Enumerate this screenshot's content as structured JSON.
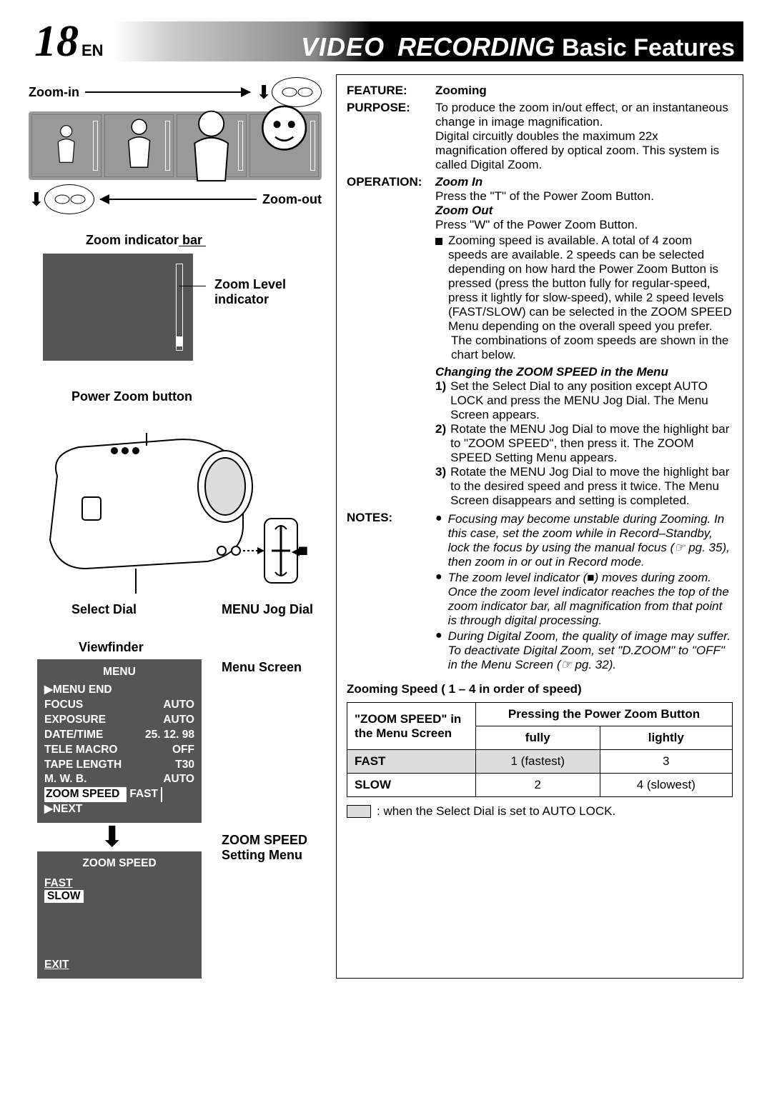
{
  "header": {
    "page_number": "18",
    "lang": "EN",
    "title_video": "VIDEO",
    "title_recording": "RECORDING",
    "title_basic": "Basic Features"
  },
  "left": {
    "zoom_in": "Zoom-in",
    "zoom_out": "Zoom-out",
    "zoom_indicator_bar": "Zoom indicator bar",
    "zoom_level_indicator": "Zoom Level indicator",
    "power_zoom_button": "Power Zoom button",
    "select_dial": "Select Dial",
    "menu_jog_dial": "MENU Jog Dial",
    "viewfinder": "Viewfinder",
    "menu_screen": "Menu Screen",
    "zoom_speed_setting_menu": "ZOOM SPEED Setting Menu",
    "menu": {
      "title": "MENU",
      "items": [
        [
          "▶MENU END",
          ""
        ],
        [
          "FOCUS",
          "AUTO"
        ],
        [
          "EXPOSURE",
          "AUTO"
        ],
        [
          "DATE/TIME",
          "25. 12. 98"
        ],
        [
          "TELE MACRO",
          "OFF"
        ],
        [
          "TAPE LENGTH",
          "T30"
        ],
        [
          "M. W. B.",
          "AUTO"
        ]
      ],
      "highlighted": [
        "ZOOM SPEED",
        "FAST"
      ],
      "next": "▶NEXT"
    },
    "zoom_speed_menu": {
      "title": "ZOOM SPEED",
      "fast": "FAST",
      "slow": "SLOW",
      "exit": "EXIT"
    }
  },
  "right": {
    "feature_key": "FEATURE:",
    "feature_val": "Zooming",
    "purpose_key": "PURPOSE:",
    "purpose_val": "To produce the zoom in/out effect, or an instantaneous change in image magnification.",
    "purpose_val2": "Digital circuitly doubles the maximum 22x magnification offered by optical zoom. This system is called Digital Zoom.",
    "operation_key": "OPERATION:",
    "zoom_in_head": "Zoom In",
    "zoom_in_text": "Press the \"T\" of the Power Zoom Button.",
    "zoom_out_head": "Zoom Out",
    "zoom_out_text": "Press \"W\" of the Power Zoom Button.",
    "bullet1": "Zooming speed is available. A total of 4 zoom speeds are available. 2 speeds can be selected depending on how hard the Power Zoom Button is pressed (press the button fully for regular-speed, press it lightly for slow-speed), while 2 speed levels (FAST/SLOW) can be selected in the ZOOM SPEED Menu depending on the overall speed you prefer.",
    "bullet1b": "The combinations of zoom speeds are shown in the chart below.",
    "changing_head": "Changing the ZOOM SPEED in the Menu",
    "step1": "Set the Select Dial to any position except AUTO LOCK and press the MENU Jog Dial. The Menu Screen appears.",
    "step2": "Rotate the MENU Jog Dial to move the highlight bar to \"ZOOM SPEED\", then press it. The ZOOM SPEED Setting Menu appears.",
    "step3": "Rotate the MENU Jog Dial to move the highlight bar to the desired speed and press it twice. The Menu Screen disappears and setting is completed.",
    "notes_key": "NOTES:",
    "note1": "Focusing may become unstable during Zooming. In this case, set the zoom while in Record–Standby, lock the focus by using the manual focus (☞ pg. 35), then zoom in or out in Record mode.",
    "note2": "The zoom level indicator (■) moves during zoom. Once the zoom level indicator reaches the top of the zoom indicator bar, all magnification from that point is through digital processing.",
    "note3": "During Digital Zoom, the quality of image may suffer. To deactivate Digital Zoom, set \"D.ZOOM\" to \"OFF\" in the Menu Screen (☞ pg. 32).",
    "speed_heading": "Zooming Speed ( 1 – 4 in order of speed)",
    "table": {
      "h1": "\"ZOOM SPEED\" in the Menu Screen",
      "h2": "Pressing the Power Zoom Button",
      "h2a": "fully",
      "h2b": "lightly",
      "r1": [
        "FAST",
        "1 (fastest)",
        "3"
      ],
      "r2": [
        "SLOW",
        "2",
        "4 (slowest)"
      ]
    },
    "footer_note": ": when the Select Dial is set to AUTO LOCK."
  }
}
